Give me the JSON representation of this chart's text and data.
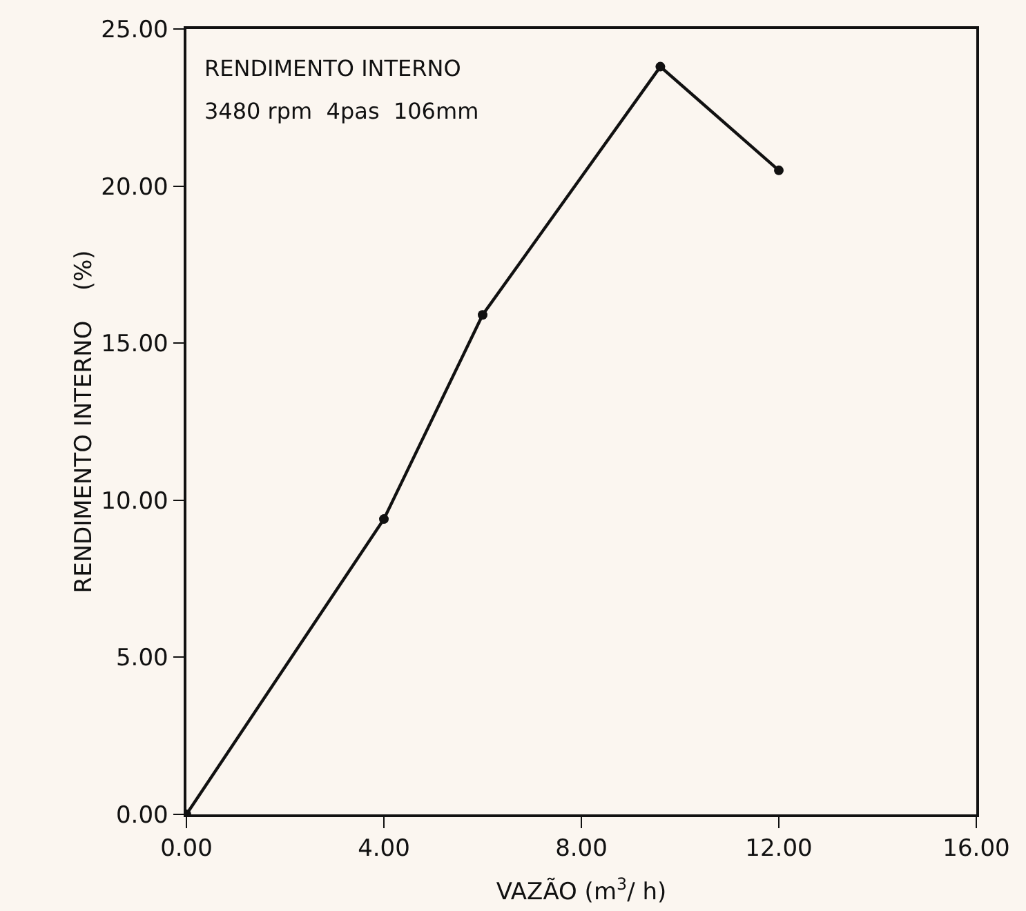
{
  "chart_data": {
    "type": "line",
    "xlabel": "VAZÃO (m$^{3}$/ h)",
    "ylabel": "RENDIMENTO INTERNO    (%)",
    "annotations": [
      "RENDIMENTO INTERNO",
      "3480 rpm  4pas  106mm"
    ],
    "x": [
      0,
      4,
      6,
      9.6,
      12
    ],
    "series": [
      {
        "color": "#111111",
        "values": [
          0,
          9.4,
          15.9,
          23.8,
          20.5
        ]
      }
    ],
    "xlim": [
      0,
      16
    ],
    "ylim": [
      0,
      25
    ],
    "xticks": [
      {
        "value": 0,
        "label": "0.00"
      },
      {
        "value": 4,
        "label": "4.00"
      },
      {
        "value": 8,
        "label": "8.00"
      },
      {
        "value": 12,
        "label": "12.00"
      },
      {
        "value": 16,
        "label": "16.00"
      }
    ],
    "yticks": [
      {
        "value": 0,
        "label": "0.00"
      },
      {
        "value": 5,
        "label": "5.00"
      },
      {
        "value": 10,
        "label": "10.00"
      },
      {
        "value": 15,
        "label": "15.00"
      },
      {
        "value": 20,
        "label": "20.00"
      },
      {
        "value": 25,
        "label": "25.00"
      }
    ],
    "grid": false,
    "marker": "circle",
    "line_style": "solid"
  }
}
